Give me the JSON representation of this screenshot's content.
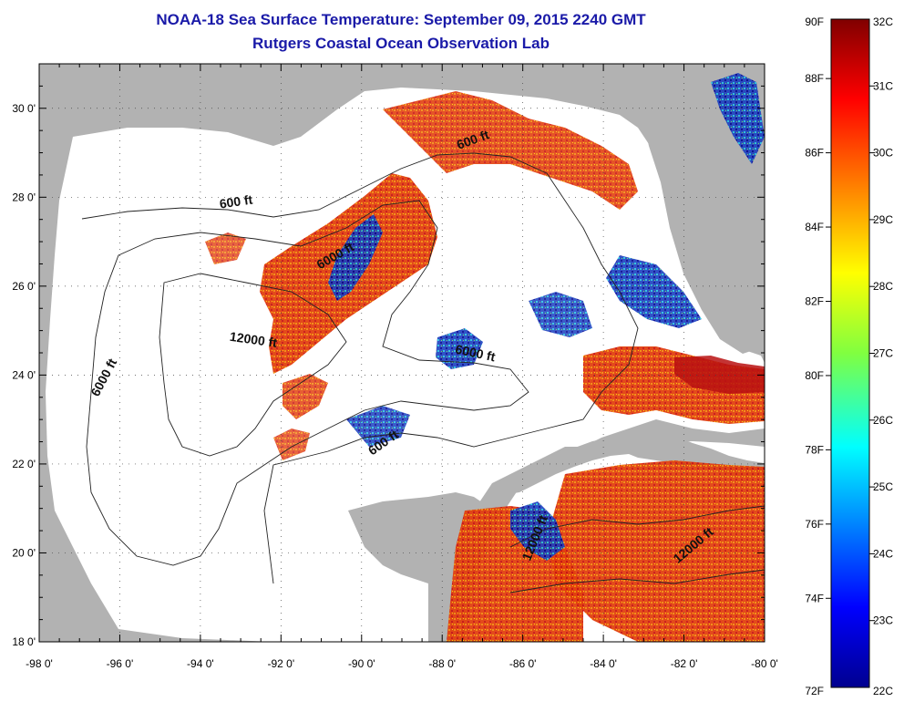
{
  "title": {
    "line1": "NOAA-18 Sea Surface Temperature:  September 09, 2015 2240 GMT",
    "line2": "Rutgers Coastal Ocean Observation Lab"
  },
  "map": {
    "lon_range": [
      -98,
      -80
    ],
    "lat_range": [
      18,
      31
    ],
    "lon_ticks": [
      -98,
      -96,
      -94,
      -92,
      -90,
      -88,
      -86,
      -84,
      -82,
      -80
    ],
    "lon_tick_labels": [
      "-98 0'",
      "-96 0'",
      "-94 0'",
      "-92 0'",
      "-90 0'",
      "-88 0'",
      "-86 0'",
      "-84 0'",
      "-82 0'",
      "-80 0'"
    ],
    "lat_ticks": [
      18,
      20,
      22,
      24,
      26,
      28,
      30
    ],
    "lat_tick_labels": [
      "18 0'",
      "20 0'",
      "22 0'",
      "24 0'",
      "26 0'",
      "28 0'",
      "30 0'"
    ],
    "contour_labels": [
      {
        "text": "600 ft",
        "lon": -93.1,
        "lat": 27.8,
        "rot": -8
      },
      {
        "text": "600 ft",
        "lon": -87.2,
        "lat": 29.2,
        "rot": -20
      },
      {
        "text": "6000 ft",
        "lon": -90.6,
        "lat": 26.6,
        "rot": -30
      },
      {
        "text": "6000 ft",
        "lon": -96.3,
        "lat": 23.9,
        "rot": -62
      },
      {
        "text": "12000 ft",
        "lon": -92.7,
        "lat": 24.7,
        "rot": 8
      },
      {
        "text": "6000 ft",
        "lon": -87.2,
        "lat": 24.4,
        "rot": 12
      },
      {
        "text": "600 ft",
        "lon": -89.4,
        "lat": 22.4,
        "rot": -35
      },
      {
        "text": "12000 ft",
        "lon": -85.6,
        "lat": 20.3,
        "rot": -68
      },
      {
        "text": "12000 ft",
        "lon": -81.7,
        "lat": 20.1,
        "rot": -40
      }
    ],
    "colors": {
      "land": "#b2b2b2",
      "ocean_nodata": "#ffffff",
      "warm": "#e83a12",
      "hot": "#c81010",
      "cool": "#1030b0"
    }
  },
  "colorbar": {
    "top_labels": {
      "f": "90F",
      "c": "32C"
    },
    "bottom_labels": {
      "f": "72F",
      "c": "22C"
    },
    "f_labels": [
      "88F",
      "86F",
      "84F",
      "82F",
      "80F",
      "78F",
      "76F",
      "74F"
    ],
    "f_values": [
      88,
      86,
      84,
      82,
      80,
      78,
      76,
      74
    ],
    "c_labels": [
      "31C",
      "30C",
      "29C",
      "28C",
      "27C",
      "26C",
      "25C",
      "24C",
      "23C"
    ],
    "c_values": [
      31,
      30,
      29,
      28,
      27,
      26,
      25,
      24,
      23
    ],
    "c_range": [
      22,
      32
    ]
  }
}
